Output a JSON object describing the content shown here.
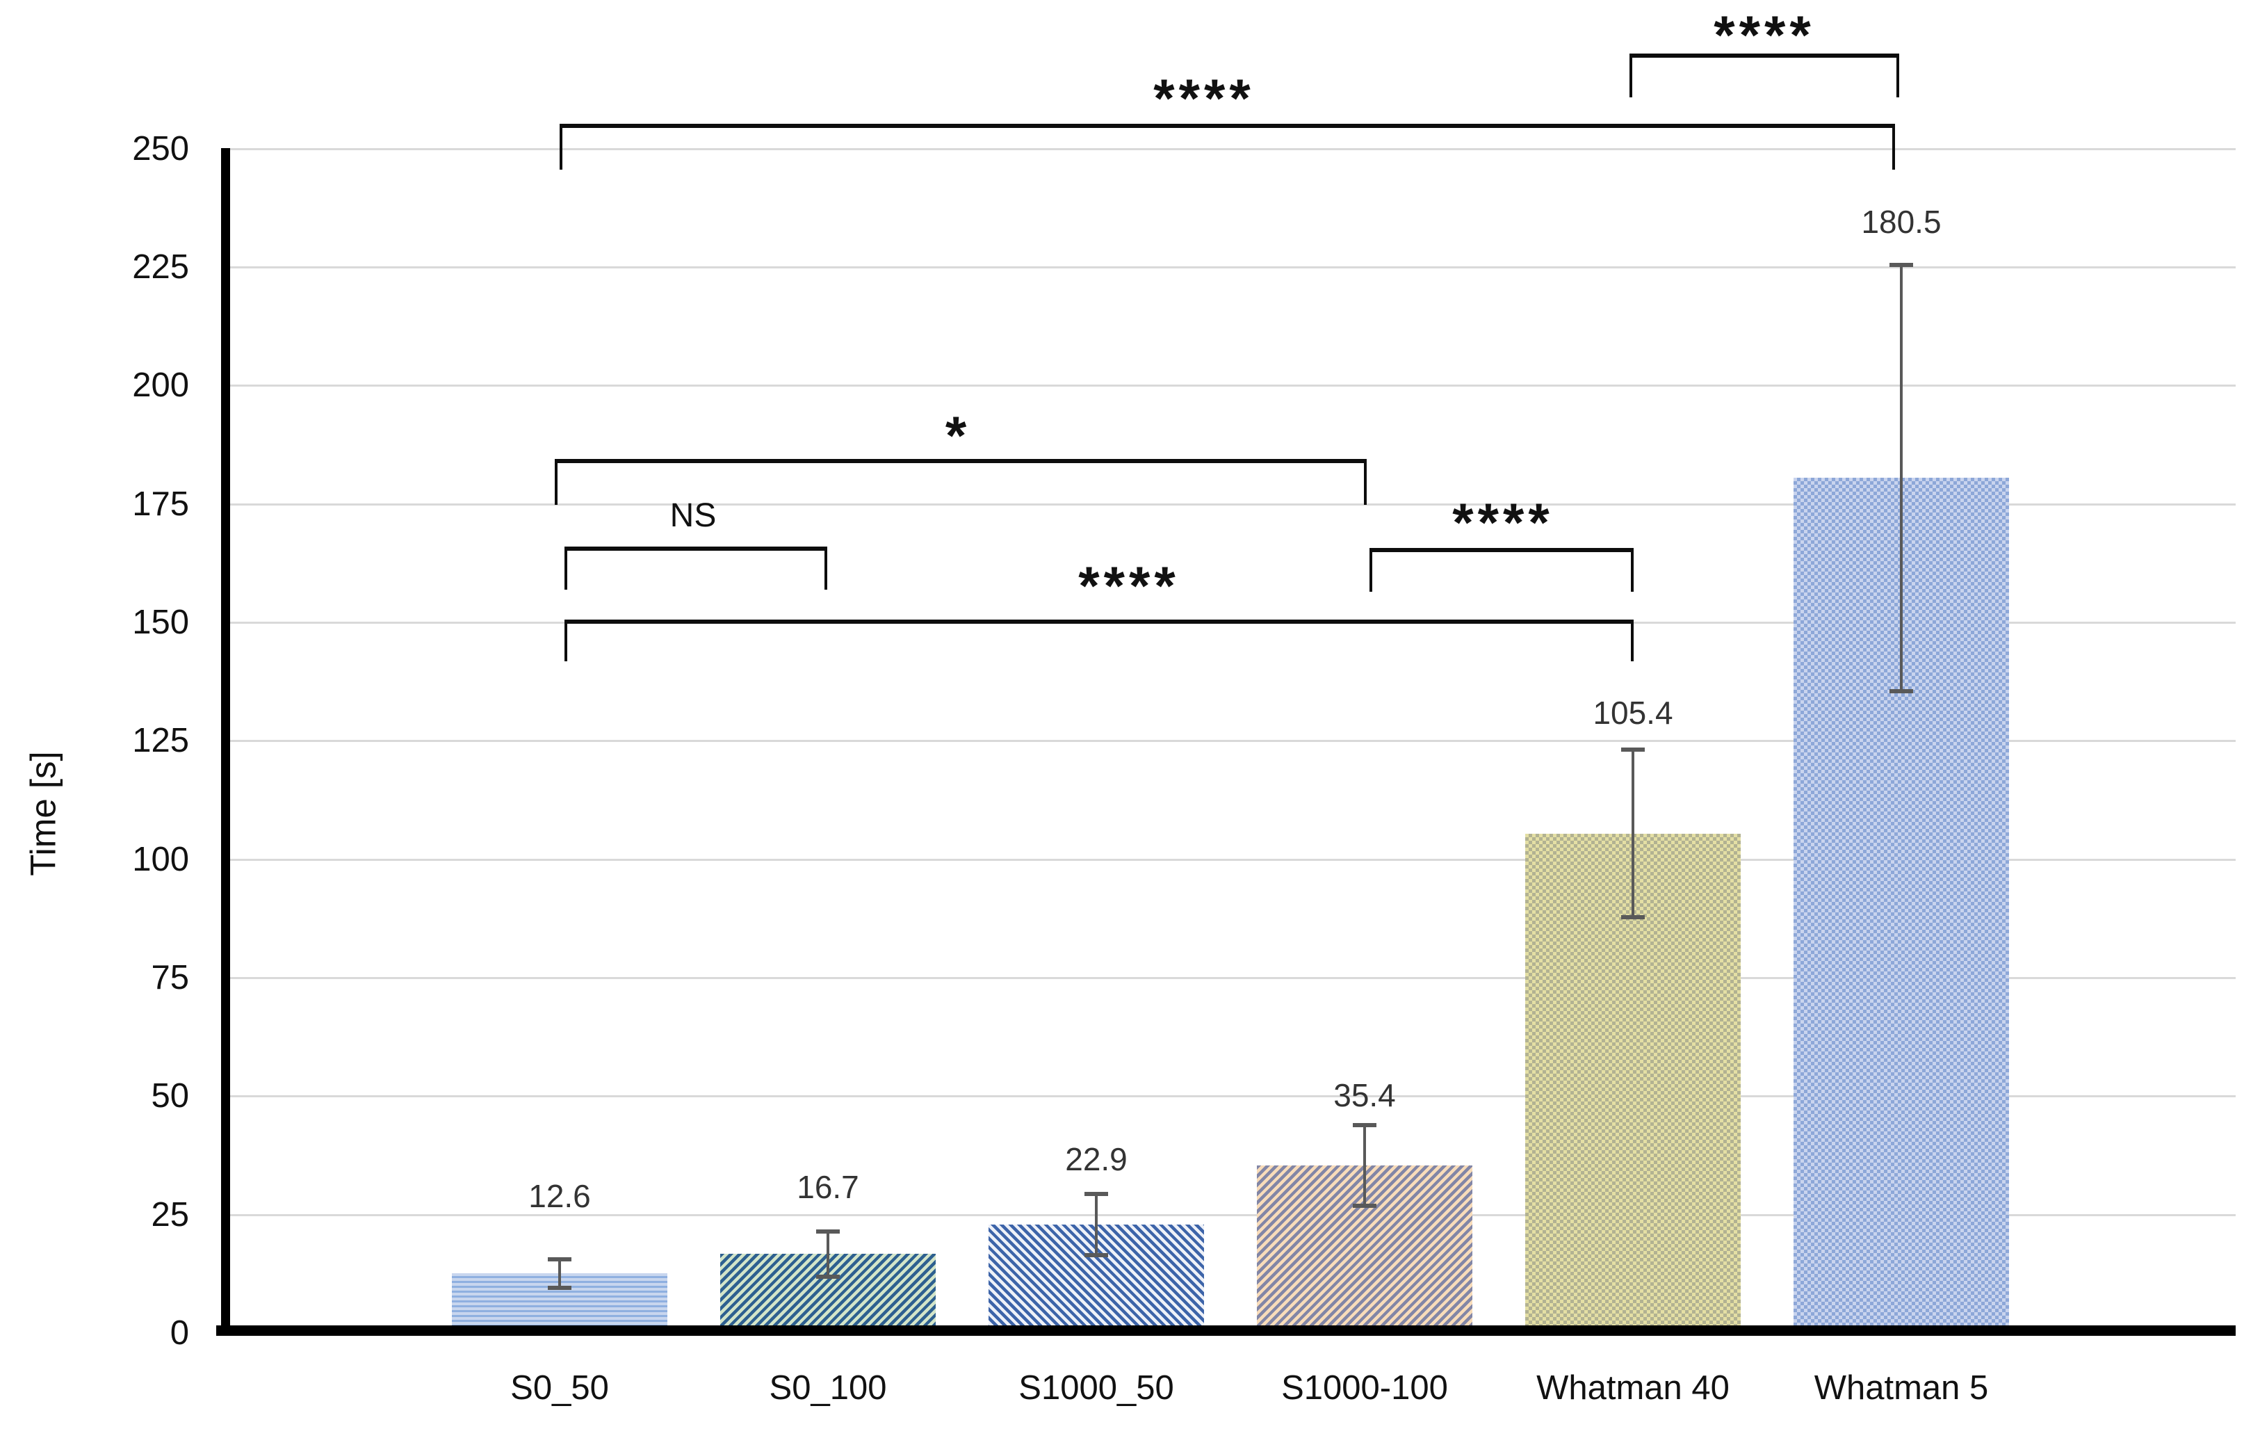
{
  "chart_data": {
    "type": "bar",
    "title": "",
    "xlabel": "",
    "ylabel": "Time [s]",
    "ylim": [
      0,
      250
    ],
    "ytick_step": 25,
    "yticks": [
      "0",
      "25",
      "50",
      "75",
      "100",
      "125",
      "150",
      "175",
      "200",
      "225",
      "250"
    ],
    "grid": true,
    "legend_position": "none",
    "categories": [
      "S0_50",
      "S0_100",
      "S1000_50",
      "S1000-100",
      "Whatman 40",
      "Whatman 5"
    ],
    "series": [
      {
        "name": "Time",
        "values": [
          12.6,
          16.7,
          22.9,
          35.4,
          105.4,
          180.5
        ]
      }
    ],
    "errors": [
      3.0,
      4.8,
      6.5,
      8.5,
      17.7,
      45.0
    ],
    "data_labels": [
      "12.6",
      "16.7",
      "22.9",
      "35.4",
      "105.4",
      "180.5"
    ],
    "bar_styles": [
      {
        "pattern": "horizontal-stripes",
        "colors": [
          "#c8d6ee",
          "#8fb0e0"
        ]
      },
      {
        "pattern": "diagonal-stripes-up",
        "colors": [
          "#d3e5c9",
          "#2e6090"
        ]
      },
      {
        "pattern": "diagonal-stripes-down",
        "colors": [
          "#eef1f8",
          "#3d64a9"
        ]
      },
      {
        "pattern": "diagonal-stripes-up",
        "colors": [
          "#f8dcba",
          "#8286a6"
        ]
      },
      {
        "pattern": "dotted-grid",
        "colors": [
          "#e4dfa4",
          "#b2b292"
        ]
      },
      {
        "pattern": "dotted-grid",
        "colors": [
          "#c9d4ee",
          "#8da7d8"
        ]
      }
    ],
    "significance_brackets": [
      {
        "from": "S0_50",
        "to": "S0_100",
        "label": "NS"
      },
      {
        "from": "S0_50",
        "to": "S1000-100",
        "label": "*"
      },
      {
        "from": "S0_50",
        "to": "Whatman 40",
        "label": "****"
      },
      {
        "from": "S1000-100",
        "to": "Whatman 40",
        "label": "****"
      },
      {
        "from": "Whatman 40",
        "to": "Whatman 5",
        "label": "****"
      },
      {
        "from": "S0_50",
        "to": "Whatman 5",
        "label": "****"
      }
    ],
    "colors": {
      "gridline": "#d9d9d9",
      "axis": "#000000",
      "error_bar": "#595959",
      "data_label": "#333333",
      "text": "#111111",
      "background": "#ffffff"
    }
  }
}
